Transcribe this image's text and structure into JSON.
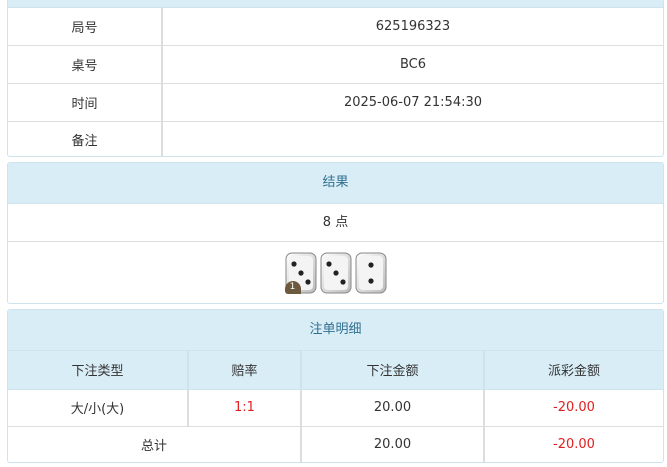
{
  "info": {
    "rows": [
      {
        "label": "局号",
        "value": "625196323"
      },
      {
        "label": "桌号",
        "value": "BC6"
      },
      {
        "label": "时间",
        "value": "2025-06-07 21:54:30"
      },
      {
        "label": "备注",
        "value": ""
      }
    ]
  },
  "result": {
    "title": "结果",
    "points": "8 点",
    "dice": [
      3,
      3,
      2
    ],
    "badge": "1"
  },
  "bets": {
    "title": "注单明细",
    "headers": [
      "下注类型",
      "赔率",
      "下注金额",
      "派彩金额"
    ],
    "rows": [
      {
        "type": "大/小(大)",
        "odds": "1:1",
        "amount": "20.00",
        "payout": "-20.00"
      }
    ],
    "total": {
      "label": "总计",
      "amount": "20.00",
      "payout": "-20.00"
    }
  },
  "colors": {
    "header_bg": "#d9edf7",
    "header_text": "#31708f",
    "negative": "#e02020"
  }
}
